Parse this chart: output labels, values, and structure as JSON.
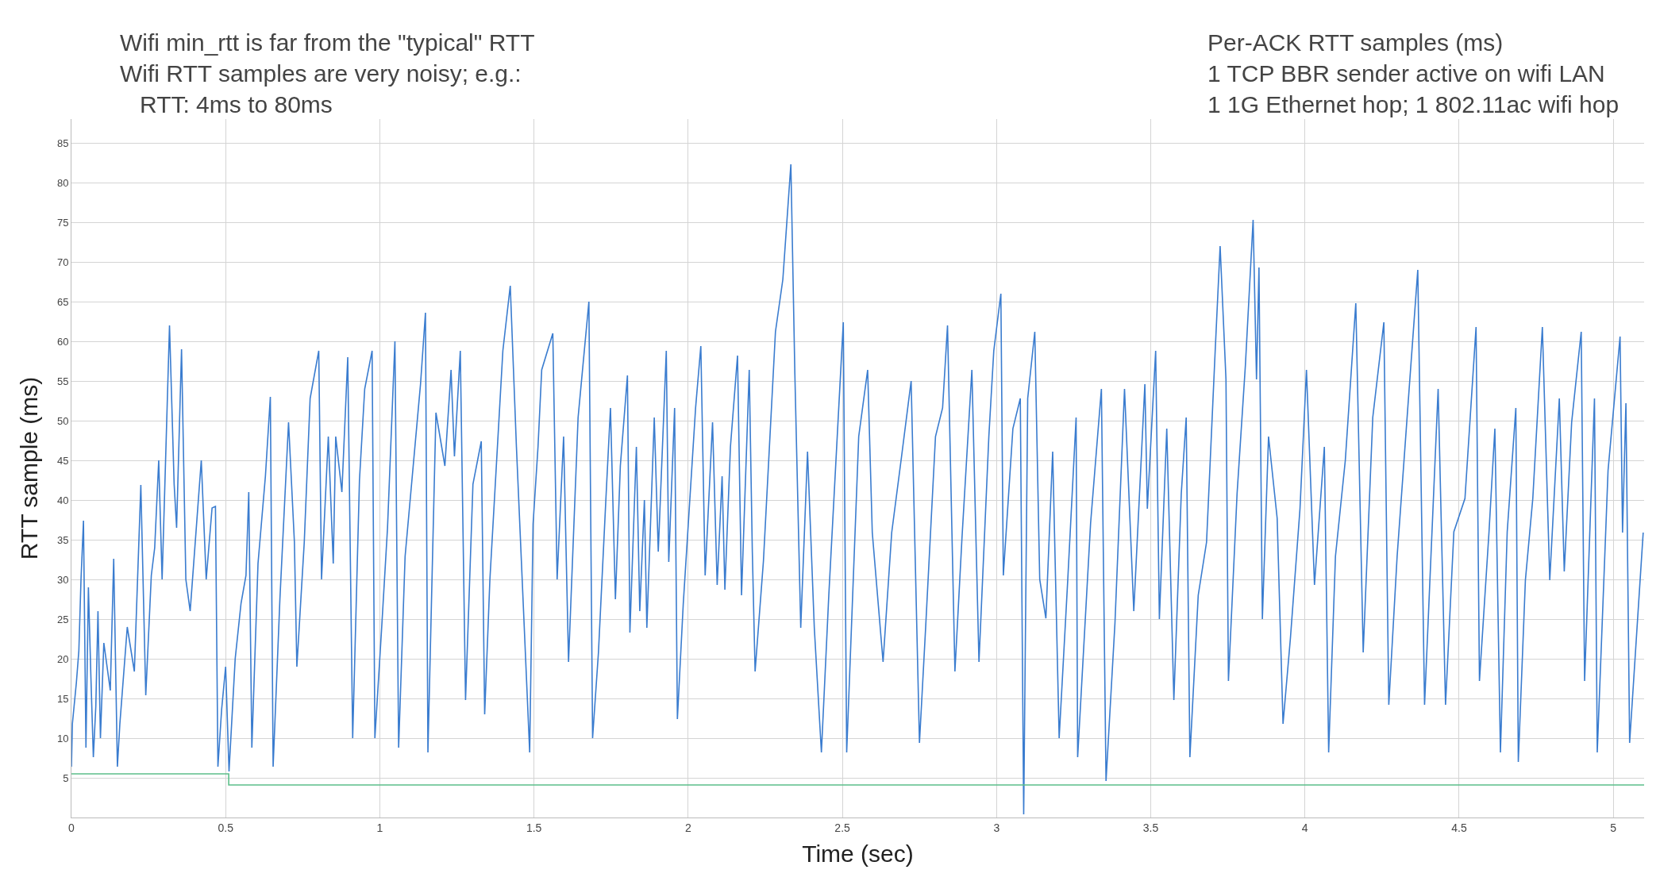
{
  "chart_data": {
    "type": "line",
    "xlabel": "Time (sec)",
    "ylabel": "RTT sample (ms)",
    "annotations": [
      "Wifi min_rtt is far from the \"typical\" RTT\nWifi RTT samples are very noisy; e.g.:\n   RTT: 4ms to 80ms",
      "Per-ACK RTT samples (ms)\n1 TCP BBR sender active on wifi LAN\n1 1G Ethernet hop; 1 802.11ac wifi hop"
    ],
    "xlim": [
      0,
      5.1
    ],
    "xticks": [
      0,
      0.5,
      1,
      1.5,
      2,
      2.5,
      3,
      3.5,
      4,
      4.5,
      5
    ],
    "ylim": [
      0,
      88
    ],
    "yticks": [
      5,
      10,
      15,
      20,
      25,
      30,
      35,
      40,
      45,
      50,
      55,
      60,
      65,
      70,
      75,
      80,
      85
    ],
    "grid": true,
    "series": [
      {
        "color": "#3a7ccf",
        "x": [
          0,
          0.003,
          0.016,
          0.024,
          0.031,
          0.039,
          0.047,
          0.055,
          0.063,
          0.071,
          0.079,
          0.086,
          0.094,
          0.105,
          0.126,
          0.137,
          0.149,
          0.157,
          0.181,
          0.204,
          0.225,
          0.241,
          0.259,
          0.27,
          0.283,
          0.294,
          0.318,
          0.333,
          0.341,
          0.357,
          0.371,
          0.385,
          0.421,
          0.437,
          0.456,
          0.467,
          0.475,
          0.487,
          0.5,
          0.511,
          0.531,
          0.55,
          0.566,
          0.575,
          0.585,
          0.605,
          0.629,
          0.645,
          0.654,
          0.676,
          0.704,
          0.723,
          0.731,
          0.755,
          0.774,
          0.802,
          0.811,
          0.833,
          0.849,
          0.857,
          0.877,
          0.896,
          0.912,
          0.934,
          0.951,
          0.975,
          0.984,
          1.006,
          1.025,
          1.049,
          1.061,
          1.082,
          1.132,
          1.148,
          1.156,
          1.182,
          1.211,
          1.231,
          1.242,
          1.261,
          1.278,
          1.302,
          1.329,
          1.34,
          1.357,
          1.399,
          1.423,
          1.443,
          1.486,
          1.497,
          1.513,
          1.525,
          1.561,
          1.575,
          1.596,
          1.612,
          1.643,
          1.678,
          1.69,
          1.709,
          1.733,
          1.748,
          1.764,
          1.78,
          1.803,
          1.811,
          1.832,
          1.843,
          1.858,
          1.866,
          1.89,
          1.903,
          1.929,
          1.937,
          1.956,
          1.965,
          1.984,
          2.024,
          2.041,
          2.055,
          2.079,
          2.094,
          2.11,
          2.119,
          2.137,
          2.16,
          2.173,
          2.198,
          2.208,
          2.217,
          2.244,
          2.283,
          2.307,
          2.333,
          2.346,
          2.365,
          2.387,
          2.409,
          2.432,
          2.456,
          2.503,
          2.514,
          2.553,
          2.582,
          2.597,
          2.632,
          2.66,
          2.692,
          2.723,
          2.75,
          2.77,
          2.802,
          2.825,
          2.841,
          2.865,
          2.888,
          2.92,
          2.943,
          2.975,
          2.991,
          3.014,
          3.022,
          3.053,
          3.077,
          3.088,
          3.101,
          3.124,
          3.14,
          3.16,
          3.182,
          3.203,
          3.231,
          3.258,
          3.263,
          3.305,
          3.34,
          3.355,
          3.384,
          3.415,
          3.445,
          3.481,
          3.489,
          3.516,
          3.528,
          3.552,
          3.575,
          3.599,
          3.615,
          3.627,
          3.654,
          3.681,
          3.709,
          3.725,
          3.744,
          3.752,
          3.78,
          3.807,
          3.832,
          3.843,
          3.851,
          3.862,
          3.882,
          3.91,
          3.929,
          3.953,
          3.984,
          4.005,
          4.031,
          4.063,
          4.077,
          4.099,
          4.131,
          4.165,
          4.189,
          4.22,
          4.256,
          4.272,
          4.299,
          4.338,
          4.366,
          4.388,
          4.432,
          4.456,
          4.483,
          4.519,
          4.555,
          4.566,
          4.597,
          4.616,
          4.634,
          4.656,
          4.684,
          4.692,
          4.715,
          4.739,
          4.77,
          4.794,
          4.825,
          4.841,
          4.865,
          4.896,
          4.907,
          4.939,
          4.948,
          4.983,
          5.022,
          5.03,
          5.041,
          5.053,
          5.077,
          5.097
        ],
        "values": [
          6.4,
          11.8,
          17,
          21,
          30,
          37.4,
          8.8,
          29,
          17.8,
          7.6,
          14,
          26,
          10,
          22,
          16,
          32.6,
          6.4,
          11.8,
          24,
          18.4,
          41.9,
          15.4,
          30.5,
          34,
          45,
          30,
          62,
          42,
          36.5,
          59,
          30,
          26,
          45,
          30,
          39,
          39.2,
          6.4,
          13.6,
          19,
          5.8,
          20,
          27,
          30.5,
          41,
          8.8,
          32,
          43,
          53,
          6.4,
          27.5,
          49.8,
          34.7,
          19,
          34.7,
          52.8,
          58.8,
          30,
          48,
          32,
          48,
          41,
          58,
          10,
          42.5,
          54,
          58.8,
          10,
          23.9,
          36.5,
          60,
          8.8,
          32.9,
          54.6,
          63.6,
          8.2,
          51,
          44.3,
          56.4,
          45.5,
          58.8,
          14.8,
          42,
          47.4,
          13,
          30,
          58.8,
          67,
          46.7,
          8.2,
          37,
          46.7,
          56.4,
          61,
          30,
          48,
          19.6,
          50.4,
          65,
          10,
          20.8,
          40,
          51.6,
          27.5,
          44.3,
          55.7,
          23.3,
          46.7,
          26,
          40,
          23.9,
          50.4,
          33.5,
          58.8,
          32.2,
          51.6,
          12.4,
          26.9,
          51.6,
          59.4,
          30.5,
          49.8,
          29.3,
          43,
          28.7,
          46.7,
          58.2,
          28,
          56.4,
          33.5,
          18.4,
          32.3,
          61.2,
          67.8,
          82.3,
          55.8,
          23.9,
          46.1,
          23.9,
          8.2,
          28,
          62.4,
          8.2,
          48,
          56.4,
          35.9,
          19.6,
          35.9,
          45.5,
          55,
          9.4,
          23.9,
          48,
          51.6,
          62,
          18.4,
          35.3,
          56.4,
          19.6,
          48,
          58.8,
          66,
          30.5,
          49,
          52.8,
          0.4,
          52.8,
          61.2,
          30,
          25.1,
          46.1,
          10,
          30,
          50.4,
          7.6,
          37.1,
          54,
          4.6,
          24.5,
          54,
          26,
          54.6,
          38.9,
          58.8,
          25,
          49,
          14.8,
          40.8,
          50.4,
          7.6,
          28,
          34.7,
          58.8,
          72,
          55.2,
          17.2,
          40.8,
          57,
          75.3,
          55.2,
          69.3,
          25,
          48,
          37.7,
          11.8,
          22.6,
          38.9,
          56.4,
          29.3,
          46.7,
          8.2,
          32.9,
          45,
          64.8,
          20.8,
          50.4,
          62.4,
          14.2,
          32.9,
          54,
          69,
          14.2,
          54,
          14.2,
          36,
          40.2,
          61.8,
          17.2,
          36,
          49,
          8.2,
          36,
          51.6,
          7,
          29.9,
          40.2,
          61.8,
          29.9,
          52.8,
          31,
          49.8,
          61.2,
          17.2,
          52.8,
          8.2,
          43.7,
          60.6,
          35.9,
          52.2,
          9.4,
          23.9,
          35.9
        ]
      },
      {
        "type": "step",
        "color": "#5cbf8a",
        "x": [
          0,
          0.51,
          5.1
        ],
        "values": [
          5.5,
          4.1,
          4.1
        ]
      }
    ]
  }
}
